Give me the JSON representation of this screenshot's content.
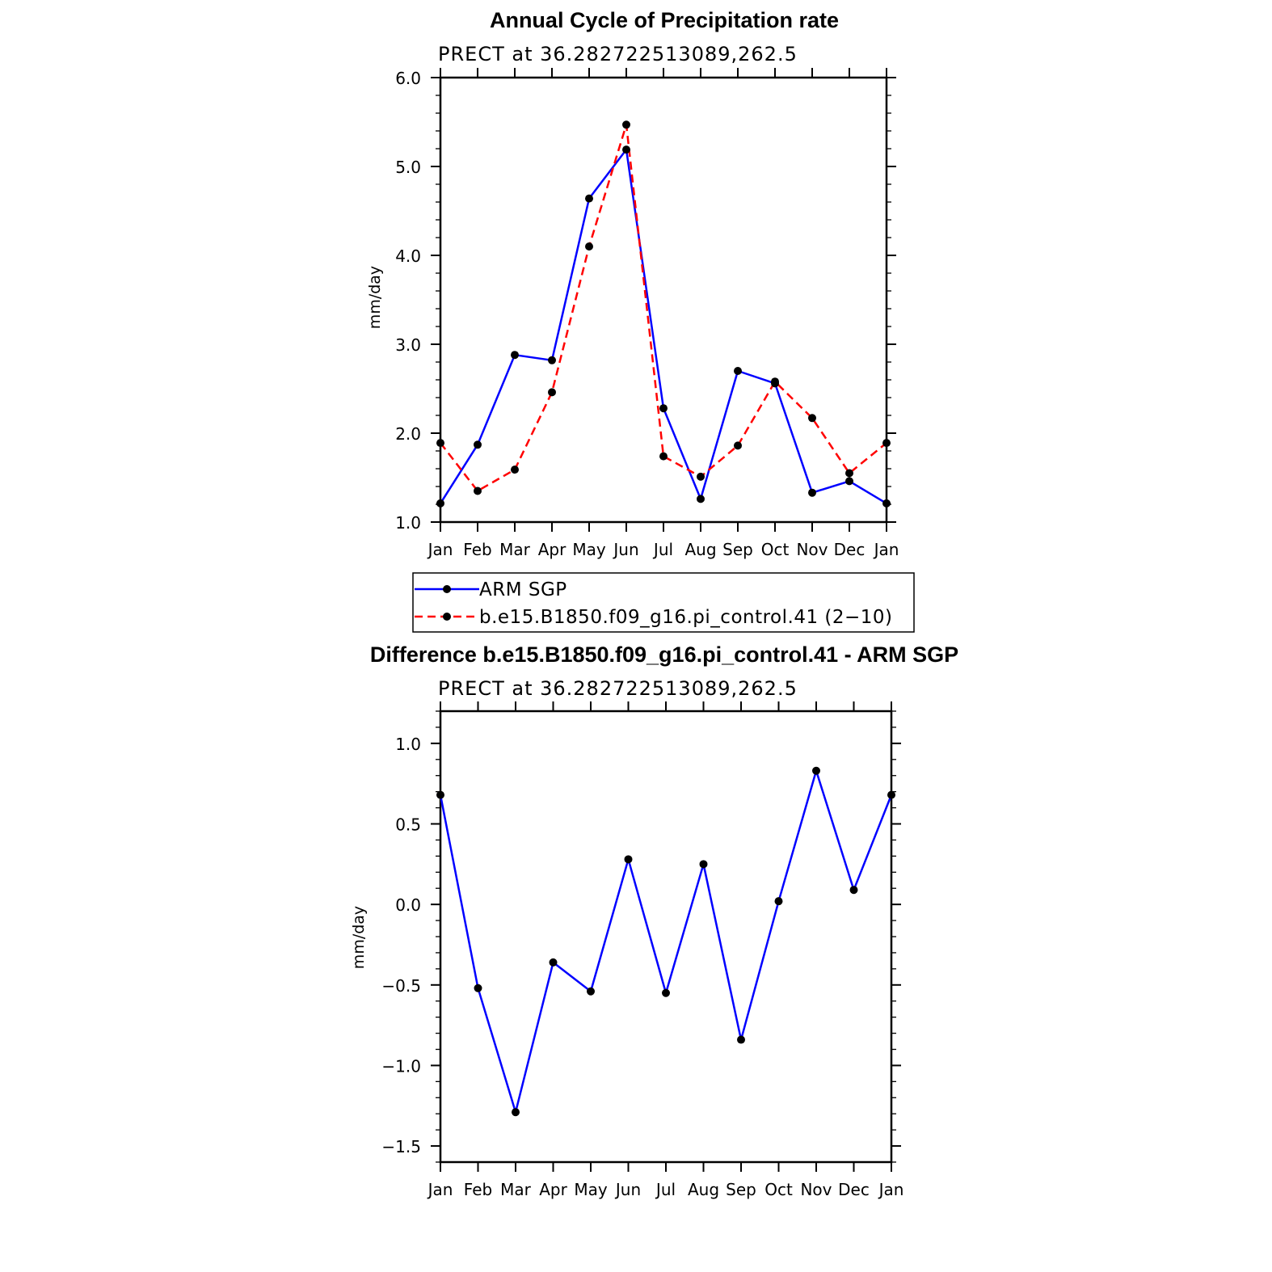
{
  "chart_data": [
    {
      "type": "line",
      "title": "Annual Cycle of Precipitation rate",
      "subtitle": "PRECT at 36.282722513089,262.5",
      "ylabel": "mm/day",
      "ylim": [
        1.0,
        6.0
      ],
      "yticks": [
        "1.0",
        "2.0",
        "3.0",
        "4.0",
        "5.0",
        "6.0"
      ],
      "categories": [
        "Jan",
        "Feb",
        "Mar",
        "Apr",
        "May",
        "Jun",
        "Jul",
        "Aug",
        "Sep",
        "Oct",
        "Nov",
        "Dec",
        "Jan"
      ],
      "series": [
        {
          "name": "ARM SGP",
          "color": "#0000ff",
          "dash": "solid",
          "values": [
            1.21,
            1.87,
            2.88,
            2.82,
            4.64,
            5.19,
            2.28,
            1.26,
            2.7,
            2.56,
            1.33,
            1.46,
            1.21
          ]
        },
        {
          "name": "b.e15.B1850.f09_g16.pi_control.41 (2−10)",
          "color": "#ff0000",
          "dash": "dashed",
          "values": [
            1.89,
            1.35,
            1.59,
            2.46,
            4.1,
            5.47,
            1.74,
            1.51,
            1.86,
            2.58,
            2.17,
            1.55,
            1.89
          ]
        }
      ],
      "legend": "bottom"
    },
    {
      "type": "line",
      "title": "Difference b.e15.B1850.f09_g16.pi_control.41 - ARM SGP",
      "subtitle": "PRECT at 36.282722513089,262.5",
      "ylabel": "mm/day",
      "ylim": [
        -1.6,
        1.2
      ],
      "yticks": [
        "−1.5",
        "−1.0",
        "−0.5",
        "0.0",
        "0.5",
        "1.0"
      ],
      "ytick_values": [
        -1.5,
        -1.0,
        -0.5,
        0.0,
        0.5,
        1.0
      ],
      "categories": [
        "Jan",
        "Feb",
        "Mar",
        "Apr",
        "May",
        "Jun",
        "Jul",
        "Aug",
        "Sep",
        "Oct",
        "Nov",
        "Dec",
        "Jan"
      ],
      "series": [
        {
          "color": "#0000ff",
          "dash": "solid",
          "values": [
            0.68,
            -0.52,
            -1.29,
            -0.36,
            -0.54,
            0.28,
            -0.55,
            0.25,
            -0.84,
            0.02,
            0.83,
            0.09,
            0.68
          ]
        }
      ]
    }
  ]
}
